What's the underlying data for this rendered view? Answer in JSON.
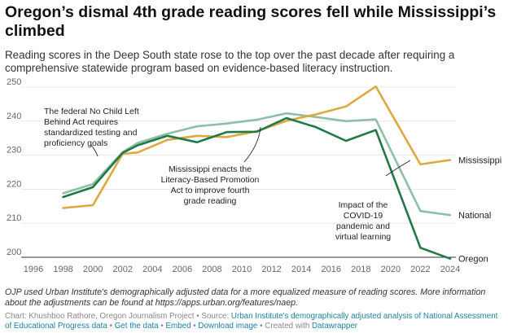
{
  "title": "Oregon’s dismal 4th grade reading scores fell while Mississippi’s climbed",
  "subtitle": "Reading scores in the Deep South state rose to the top over the past decade after requiring a comprehensive statewide program based on evidence-based literacy instruction.",
  "notes": "OJP used Urban Institute's demographically adjusted data for a more equalized measure of reading scores. More information about the adjustments can be found at https://apps.urban.org/features/naep.",
  "footer": {
    "chart_prefix": "Chart: Khushboo Rathore, Oregon Journalism Project • Source: ",
    "source_link": "Urban Institute's demographically adjusted analysis of National Assessment of Educational Progress data",
    "sep1": " • ",
    "get_data": "Get the data",
    "sep2": " • ",
    "embed": "Embed",
    "sep3": " • ",
    "download": "Download image",
    "sep4": " • Created with ",
    "datawrapper": "Datawrapper"
  },
  "chart_data": {
    "type": "line",
    "x": [
      1998,
      2000,
      2002,
      2003,
      2005,
      2007,
      2009,
      2011,
      2013,
      2015,
      2017,
      2019,
      2022,
      2024
    ],
    "xticks": [
      "1996",
      "1998",
      "2000",
      "2002",
      "2004",
      "2006",
      "2008",
      "2010",
      "2012",
      "2014",
      "2016",
      "2018",
      "2020",
      "2022",
      "2024"
    ],
    "xlim": [
      1996,
      2024
    ],
    "yticks": [
      200,
      210,
      220,
      230,
      240,
      250
    ],
    "ylim": [
      200,
      250
    ],
    "series": [
      {
        "name": "Mississippi",
        "color": "#e0a841",
        "values": [
          214.5,
          215.3,
          230.4,
          230.8,
          234.5,
          235.7,
          235.3,
          237.0,
          240.1,
          242.0,
          244.3,
          250.2,
          227.3,
          228.6
        ]
      },
      {
        "name": "National",
        "color": "#8fbfa6",
        "values": [
          218.8,
          221.5,
          230.9,
          233.6,
          236.3,
          238.5,
          239.3,
          240.4,
          242.3,
          241.2,
          240.0,
          240.5,
          213.6,
          212.4
        ]
      },
      {
        "name": "Oregon",
        "color": "#1f7a48",
        "values": [
          217.7,
          220.6,
          230.7,
          232.9,
          235.7,
          233.8,
          236.8,
          236.9,
          240.9,
          238.2,
          234.2,
          237.4,
          202.8,
          199.6
        ]
      }
    ],
    "annotations": [
      {
        "lines": [
          "The federal No Child Left",
          "Behind Act requires",
          "standardized testing and",
          "proficiency goals"
        ]
      },
      {
        "lines": [
          "Mississippi enacts the",
          "Literacy-Based Promotion",
          "Act to improve fourth",
          "grade reading"
        ]
      },
      {
        "lines": [
          "Impact of the",
          "COVID-19",
          "pandemic and",
          "virtual learning"
        ]
      }
    ]
  }
}
